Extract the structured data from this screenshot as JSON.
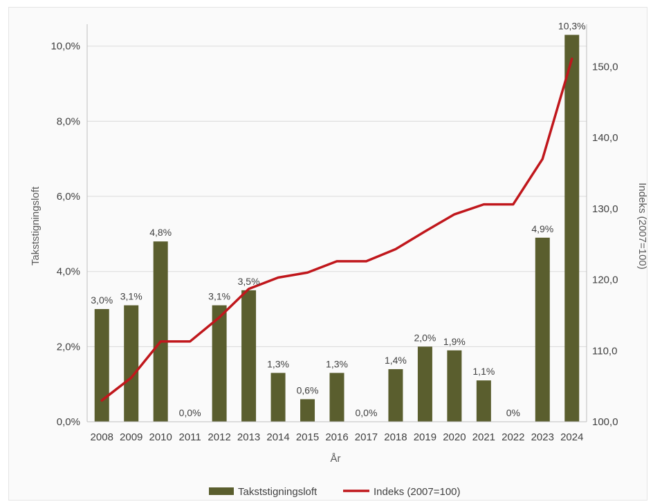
{
  "chart_data": {
    "type": "bar",
    "categories": [
      "2008",
      "2009",
      "2010",
      "2011",
      "2012",
      "2013",
      "2014",
      "2015",
      "2016",
      "2017",
      "2018",
      "2019",
      "2020",
      "2021",
      "2022",
      "2023",
      "2024"
    ],
    "series": [
      {
        "name": "Takststigningsloft",
        "type": "bar",
        "axis": "left",
        "color": "#5a5e2e",
        "values": [
          3.0,
          3.1,
          4.8,
          0.0,
          3.1,
          3.5,
          1.3,
          0.6,
          1.3,
          0.0,
          1.4,
          2.0,
          1.9,
          1.1,
          0.0,
          4.9,
          10.3
        ],
        "labels": [
          "3,0%",
          "3,1%",
          "4,8%",
          "0,0%",
          "3,1%",
          "3,5%",
          "1,3%",
          "0,6%",
          "1,3%",
          "0,0%",
          "1,4%",
          "2,0%",
          "1,9%",
          "1,1%",
          "0%",
          "4,9%",
          "10,3%"
        ]
      },
      {
        "name": "Indeks (2007=100)",
        "type": "line",
        "axis": "right",
        "color": "#c0171c",
        "values": [
          103.0,
          106.2,
          111.3,
          111.3,
          114.7,
          118.7,
          120.3,
          121.0,
          122.6,
          122.6,
          124.3,
          126.8,
          129.2,
          130.6,
          130.6,
          137.0,
          151.1
        ]
      }
    ],
    "xlabel": "År",
    "ylabel": "Takststigningsloft",
    "y2label": "Indeks (2007=100)",
    "ylim": [
      0,
      10.4
    ],
    "yticks": [
      "0,0%",
      "2,0%",
      "4,0%",
      "6,0%",
      "8,0%",
      "10,0%"
    ],
    "ytick_values": [
      0,
      2,
      4,
      6,
      8,
      10
    ],
    "y2lim": [
      100,
      155
    ],
    "y2ticks": [
      "100,0",
      "110,0",
      "120,0",
      "130,0",
      "140,0",
      "150,0"
    ],
    "y2tick_values": [
      100,
      110,
      120,
      130,
      140,
      150
    ],
    "grid": true,
    "legend": "bottom"
  }
}
